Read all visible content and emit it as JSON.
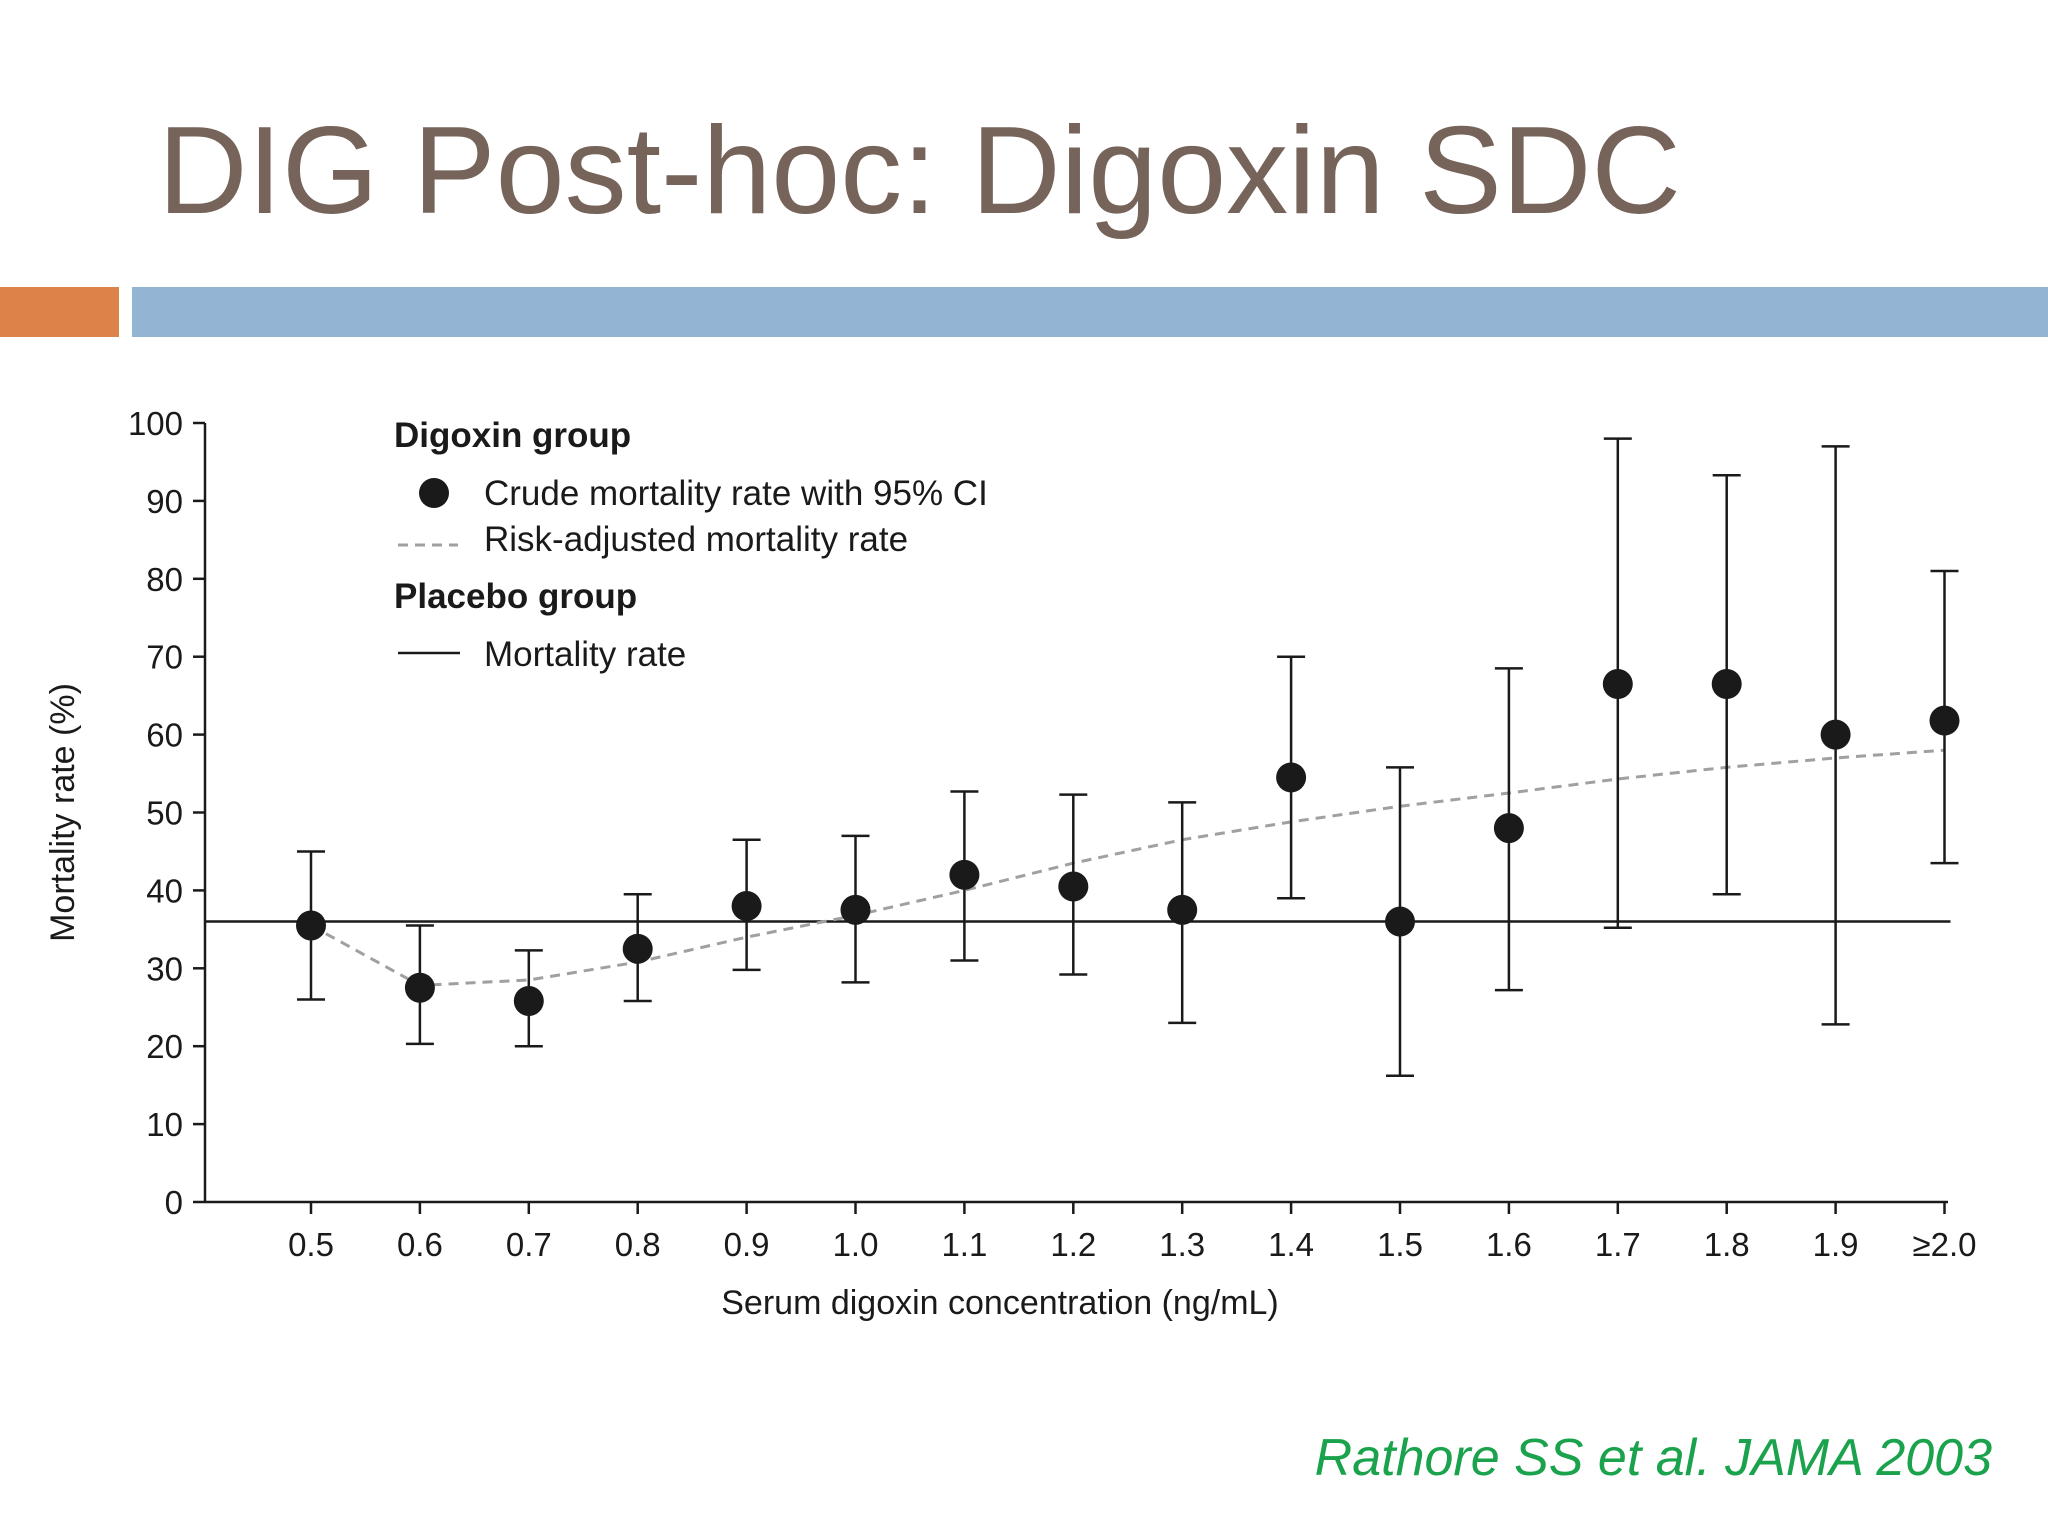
{
  "slide": {
    "title": "DIG Post-hoc: Digoxin SDC",
    "citation": "Rathore SS et al. JAMA 2003",
    "colors": {
      "title": "#76635a",
      "accent_orange": "#dd8249",
      "accent_blue": "#93b4d3",
      "citation": "#1aa24c"
    }
  },
  "chart_data": {
    "type": "scatter",
    "xlabel": "Serum digoxin concentration (ng/mL)",
    "ylabel": "Mortality rate (%)",
    "ylim": [
      0,
      100
    ],
    "yticks": [
      0,
      10,
      20,
      30,
      40,
      50,
      60,
      70,
      80,
      90,
      100
    ],
    "categories": [
      "0.5",
      "0.6",
      "0.7",
      "0.8",
      "0.9",
      "1.0",
      "1.1",
      "1.2",
      "1.3",
      "1.4",
      "1.5",
      "1.6",
      "1.7",
      "1.8",
      "1.9",
      "≥2.0"
    ],
    "grid": false,
    "legend": {
      "placement": "top-left",
      "groups": [
        {
          "title": "Digoxin group",
          "entries": [
            "Crude mortality rate with 95% CI",
            "Risk-adjusted mortality rate"
          ]
        },
        {
          "title": "Placebo group",
          "entries": [
            "Mortality rate"
          ]
        }
      ]
    },
    "series": [
      {
        "name": "Crude mortality rate with 95% CI",
        "style": "points-with-error-bars",
        "values": [
          35.5,
          27.5,
          25.8,
          32.5,
          38,
          37.5,
          42,
          40.5,
          37.5,
          54.5,
          36,
          48,
          66.5,
          66.5,
          60,
          61.8
        ],
        "ci_low": [
          26,
          20.3,
          20,
          25.8,
          29.8,
          28.2,
          31,
          29.2,
          23,
          39,
          16.2,
          27.2,
          35.2,
          39.5,
          22.8,
          43.5
        ],
        "ci_high": [
          45,
          35.5,
          32.3,
          39.5,
          46.5,
          47,
          52.7,
          52.3,
          51.3,
          70,
          55.8,
          68.5,
          98,
          93.3,
          97,
          81
        ]
      },
      {
        "name": "Risk-adjusted mortality rate",
        "style": "dashed-line",
        "values": [
          35.5,
          27.8,
          28.5,
          30.8,
          34,
          36.8,
          40,
          43.5,
          46.5,
          48.8,
          50.8,
          52.5,
          54.3,
          55.8,
          57,
          58
        ]
      },
      {
        "name": "Mortality rate",
        "group": "Placebo group",
        "style": "horizontal-line",
        "value": 36
      }
    ],
    "colors": {
      "marker": "#1a1a1a",
      "dashed": "#a0a0a0",
      "axis": "#1a1a1a"
    }
  }
}
